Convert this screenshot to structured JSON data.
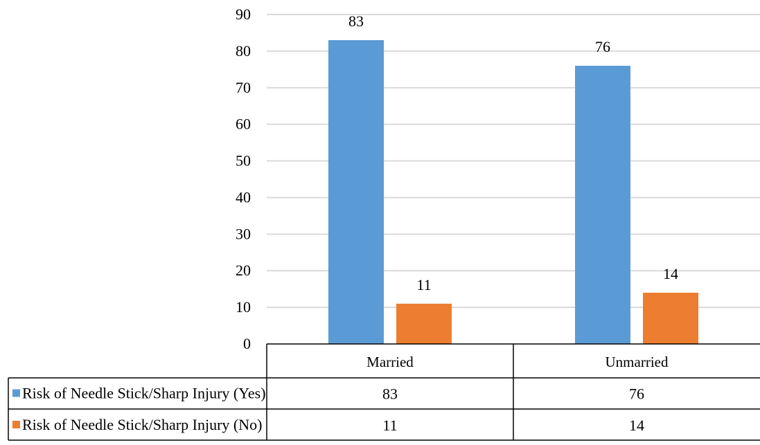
{
  "chart_data": {
    "type": "bar",
    "categories": [
      "Married",
      "Unmarried"
    ],
    "series": [
      {
        "name": "Risk of Needle Stick/Sharp Injury (Yes)",
        "values": [
          83,
          76
        ],
        "color": "#5B9BD5"
      },
      {
        "name": "Risk of Needle Stick/Sharp Injury (No)",
        "values": [
          11,
          14
        ],
        "color": "#ED7D31"
      }
    ],
    "ylim": [
      0,
      90
    ],
    "yticks": [
      0,
      10,
      20,
      30,
      40,
      50,
      60,
      70,
      80,
      90
    ],
    "grid": true,
    "data_labels": true,
    "legend": "data-table",
    "gridline_color": "#D9D9D9"
  }
}
